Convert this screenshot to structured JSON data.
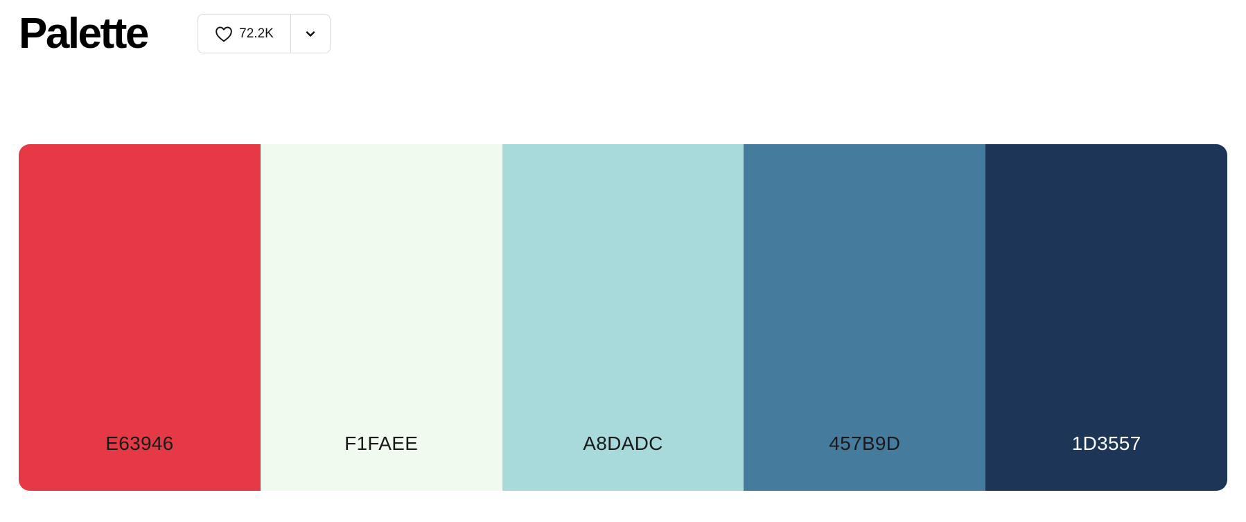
{
  "header": {
    "title": "Palette",
    "like_count": "72.2K",
    "icons": {
      "like": "heart-icon",
      "more": "chevron-down-icon"
    }
  },
  "palette": {
    "swatches": [
      {
        "hex": "E63946",
        "color": "#E63946",
        "text_color": "#1a1a1a"
      },
      {
        "hex": "F1FAEE",
        "color": "#F1FAEE",
        "text_color": "#1a1a1a"
      },
      {
        "hex": "A8DADC",
        "color": "#A8DADC",
        "text_color": "#1a1a1a"
      },
      {
        "hex": "457B9D",
        "color": "#457B9D",
        "text_color": "#1a1a1a"
      },
      {
        "hex": "1D3557",
        "color": "#1D3557",
        "text_color": "#ffffff"
      }
    ]
  }
}
